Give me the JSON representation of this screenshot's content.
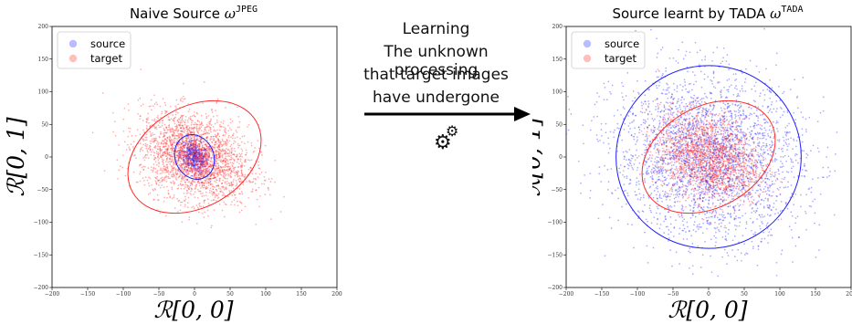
{
  "colors": {
    "source": "#1f1fff",
    "target": "#ff2a2a"
  },
  "center": {
    "lines": [
      "Learning",
      "The unknown processing",
      "that target images",
      "have undergone"
    ],
    "icon": "gears-icon"
  },
  "chart_data": [
    {
      "type": "scatter",
      "title": "Naive Source ω^JPEG",
      "title_main": "Naive Source ",
      "title_omega": "ω",
      "title_sup": "JPEG",
      "xlabel": "ℛ[0, 0]",
      "ylabel": "ℛ[0, 1]",
      "xlim": [
        -200,
        200
      ],
      "ylim": [
        -200,
        200
      ],
      "xticks": [
        -200,
        -150,
        -100,
        -50,
        0,
        50,
        100,
        150,
        200
      ],
      "yticks": [
        -200,
        -150,
        -100,
        -50,
        0,
        50,
        100,
        150,
        200
      ],
      "legend": {
        "position": "top-left",
        "entries": [
          "source",
          "target"
        ]
      },
      "series": [
        {
          "name": "source",
          "color": "#1f1fff",
          "num_points": 600,
          "center": [
            0,
            0
          ],
          "spread": [
            10,
            12
          ],
          "correlation": -0.3,
          "ellipse": {
            "center": [
              0,
              0
            ],
            "radii": [
              27,
              35
            ],
            "rotation_deg": -25
          }
        },
        {
          "name": "target",
          "color": "#ff2a2a",
          "num_points": 2600,
          "center": [
            0,
            0
          ],
          "spread": [
            38,
            34
          ],
          "correlation": -0.25,
          "ellipse": {
            "center": [
              0,
              0
            ],
            "radii": [
              100,
              77
            ],
            "rotation_deg": -30
          }
        }
      ]
    },
    {
      "type": "scatter",
      "title": "Source learnt by TADA ω^TADA",
      "title_main": "Source learnt by TADA ",
      "title_omega": "ω",
      "title_sup": "TADA",
      "xlabel": "ℛ[0, 0]",
      "ylabel": "ℛ[0, 1]",
      "xlim": [
        -200,
        200
      ],
      "ylim": [
        -200,
        200
      ],
      "xticks": [
        -200,
        -150,
        -100,
        -50,
        0,
        50,
        100,
        150,
        200
      ],
      "yticks": [
        -200,
        -150,
        -100,
        -50,
        0,
        50,
        100,
        150,
        200
      ],
      "legend": {
        "position": "top-left",
        "entries": [
          "source",
          "target"
        ]
      },
      "series": [
        {
          "name": "source",
          "color": "#1f1fff",
          "num_points": 3000,
          "center": [
            0,
            0
          ],
          "spread": [
            65,
            62
          ],
          "correlation": -0.1,
          "ellipse": {
            "center": [
              0,
              0
            ],
            "radii": [
              130,
              140
            ],
            "rotation_deg": -10
          }
        },
        {
          "name": "target",
          "color": "#ff2a2a",
          "num_points": 1800,
          "center": [
            0,
            0
          ],
          "spread": [
            36,
            34
          ],
          "correlation": -0.25,
          "ellipse": {
            "center": [
              0,
              0
            ],
            "radii": [
              100,
              77
            ],
            "rotation_deg": -30
          }
        }
      ]
    }
  ]
}
